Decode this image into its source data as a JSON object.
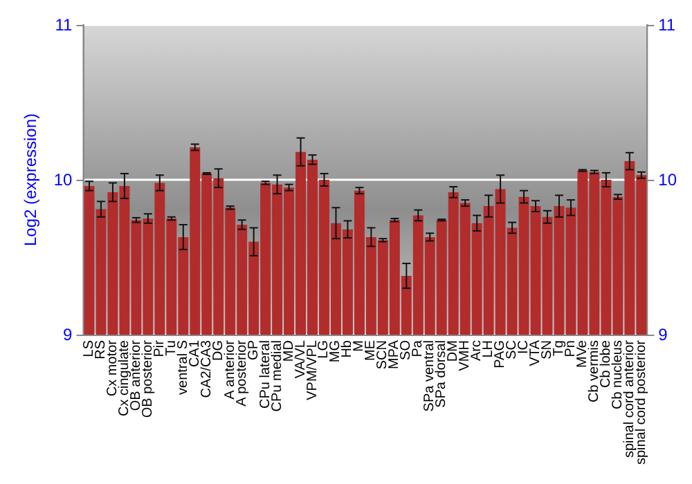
{
  "chart_data": {
    "type": "bar",
    "ylabel": "Log2 (expression)",
    "categories": [
      "LS",
      "RS",
      "Cx motor",
      "Cx cingulate",
      "OB anterior",
      "OB posterior",
      "Pir",
      "Tu",
      "ventral S",
      "CA1",
      "CA2/CA3",
      "DG",
      "A anterior",
      "A posterior",
      "GP",
      "CPu lateral",
      "CPu medial",
      "MD",
      "VA/VL",
      "VPM/VPL",
      "LG",
      "MG",
      "Hb",
      "M",
      "ME",
      "SCN",
      "MPA",
      "SO",
      "Pa",
      "SPa ventral",
      "SPa dorsal",
      "DM",
      "VMH",
      "Arc",
      "LH",
      "PAG",
      "SC",
      "IC",
      "VTA",
      "SN",
      "Tg",
      "Pn",
      "MVe",
      "Cb vermis",
      "Cb lobe",
      "Cb nucleus",
      "spinal cord anterior",
      "spinal cord posterior"
    ],
    "values": [
      9.96,
      9.81,
      9.92,
      9.96,
      9.74,
      9.75,
      9.98,
      9.75,
      9.63,
      10.21,
      10.04,
      10.01,
      9.82,
      9.71,
      9.6,
      9.98,
      9.97,
      9.95,
      10.18,
      10.13,
      10.0,
      9.72,
      9.68,
      9.93,
      9.63,
      9.61,
      9.74,
      9.38,
      9.77,
      9.63,
      9.74,
      9.92,
      9.85,
      9.72,
      9.83,
      9.94,
      9.69,
      9.89,
      9.83,
      9.76,
      9.83,
      9.82,
      10.06,
      10.05,
      10.0,
      9.89,
      10.12,
      10.03
    ],
    "errors": [
      0.03,
      0.05,
      0.06,
      0.08,
      0.015,
      0.03,
      0.05,
      0.01,
      0.08,
      0.02,
      0.005,
      0.06,
      0.01,
      0.03,
      0.09,
      0.01,
      0.06,
      0.02,
      0.09,
      0.03,
      0.04,
      0.1,
      0.055,
      0.02,
      0.06,
      0.01,
      0.01,
      0.08,
      0.035,
      0.025,
      0.005,
      0.035,
      0.02,
      0.05,
      0.07,
      0.09,
      0.035,
      0.04,
      0.035,
      0.04,
      0.07,
      0.05,
      0.005,
      0.01,
      0.045,
      0.015,
      0.055,
      0.02
    ],
    "color": "#b22c2c",
    "ylim": [
      9,
      11
    ],
    "yticks": [
      9,
      10,
      11
    ],
    "y2lim": [
      9,
      11
    ],
    "y2ticks": [
      9,
      10,
      11
    ],
    "grid": "y"
  }
}
